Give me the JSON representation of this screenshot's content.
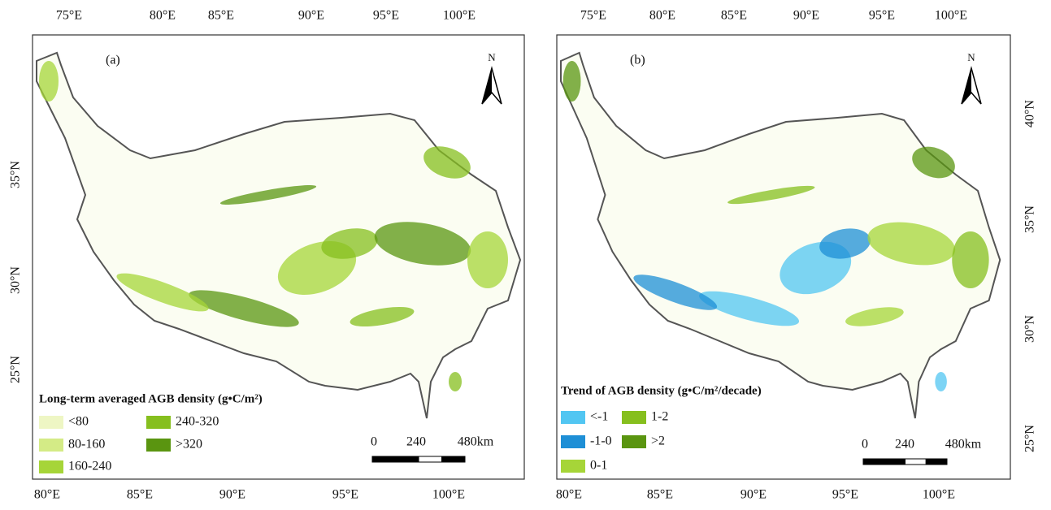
{
  "panels": [
    {
      "label": "(a)",
      "north": "N",
      "top_ticks": [
        "75°E",
        "80°E",
        "85°E",
        "90°E",
        "95°E",
        "100°E"
      ],
      "bottom_ticks": [
        "80°E",
        "85°E",
        "90°E",
        "95°E",
        "100°E"
      ],
      "side_ticks": [
        "35°N",
        "30°N",
        "25°N"
      ],
      "legend": {
        "title": "Long-term averaged AGB density (g•C/m²)",
        "items": [
          {
            "label": "<80",
            "color": "#eef6c4"
          },
          {
            "label": "80-160",
            "color": "#d4eb86"
          },
          {
            "label": "160-240",
            "color": "#a6d538"
          },
          {
            "label": "240-320",
            "color": "#86bf1e"
          },
          {
            "label": ">320",
            "color": "#5a9510"
          }
        ]
      },
      "scale": [
        "0",
        "240",
        "480km"
      ]
    },
    {
      "label": "(b)",
      "north": "N",
      "top_ticks": [
        "75°E",
        "80°E",
        "85°E",
        "90°E",
        "95°E",
        "100°E"
      ],
      "bottom_ticks": [
        "80°E",
        "85°E",
        "90°E",
        "95°E",
        "100°E"
      ],
      "side_ticks": [
        "40°N",
        "35°N",
        "30°N",
        "25°N"
      ],
      "legend": {
        "title": "Trend of AGB density (g•C/m²/decade)",
        "items": [
          {
            "label": "<-1",
            "color": "#52c6f2"
          },
          {
            "label": "-1-0",
            "color": "#1e8fd6"
          },
          {
            "label": "0-1",
            "color": "#a6d538"
          },
          {
            "label": "1-2",
            "color": "#86bf1e"
          },
          {
            "label": ">2",
            "color": "#5a9510"
          }
        ]
      },
      "scale": [
        "0",
        "240",
        "480km"
      ]
    }
  ]
}
